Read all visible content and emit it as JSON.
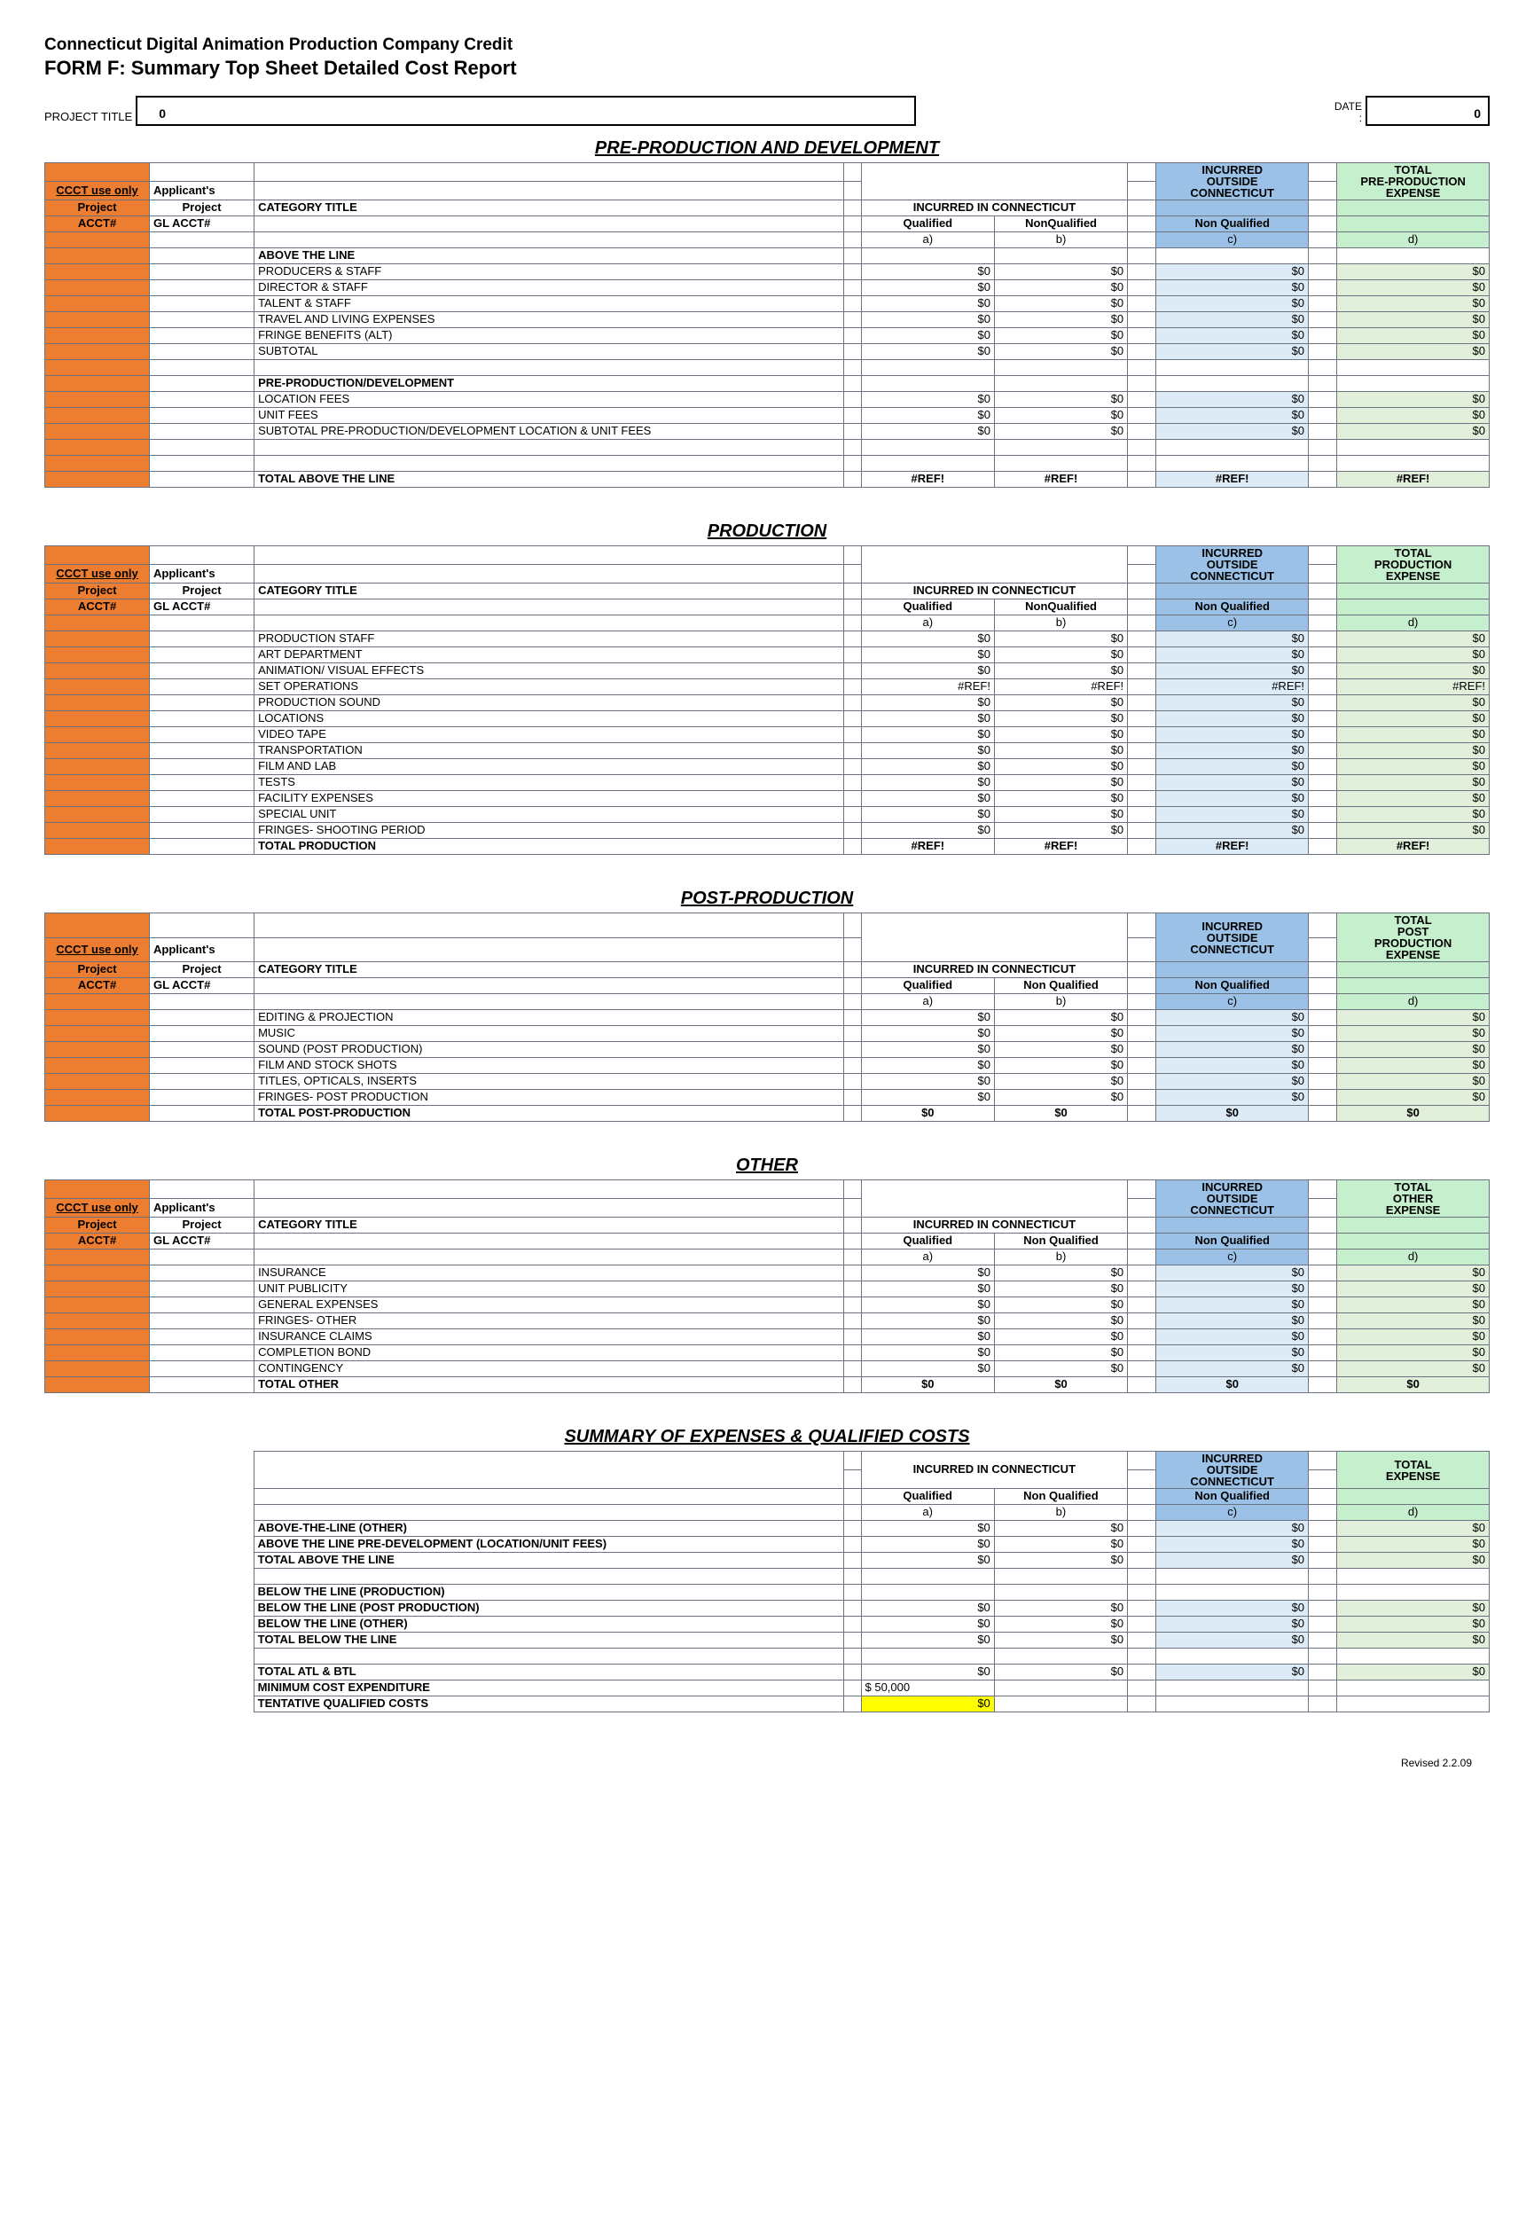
{
  "header": {
    "title1": "Connecticut Digital Animation Production Company Credit",
    "title2": "FORM F:  Summary Top Sheet Detailed Cost Report",
    "projectLabel": "PROJECT TITLE",
    "projectValue": "0",
    "dateLabel": "DATE:",
    "dateValue": "0"
  },
  "colors": {
    "orange": "#ed7d31",
    "blueHeader": "#9bc2e6",
    "greenHeader": "#c6efce",
    "blueCell": "#ddebf7",
    "greenCell": "#e2efda",
    "yellow": "#ffff00"
  },
  "labels": {
    "ccctUseOnly": "CCCT use only",
    "applicants": "Applicant's",
    "projectAcct": "Project",
    "acctNum": "ACCT#",
    "glAcct": "GL ACCT#",
    "categoryTitle": "CATEGORY TITLE",
    "incurredCT": "INCURRED IN CONNECTICUT",
    "qualified": "Qualified",
    "nonQualified": "NonQualified",
    "nonQualifiedSp": "Non Qualified",
    "incurredOutside": "INCURRED OUTSIDE CONNECTICUT",
    "a": "a)",
    "b": "b)",
    "c": "c)",
    "d": "d)"
  },
  "sections": [
    {
      "name": "PRE-PRODUCTION AND DEVELOPMENT",
      "totalHeader": "TOTAL PRE-PRODUCTION EXPENSE",
      "nonQualLabel": "NonQualified",
      "rows": [
        {
          "type": "bold",
          "label": "ABOVE THE LINE"
        },
        {
          "type": "data",
          "label": "PRODUCERS & STAFF",
          "a": "$0",
          "b": "$0",
          "c": "$0",
          "d": "$0"
        },
        {
          "type": "data",
          "label": "DIRECTOR & STAFF",
          "a": "$0",
          "b": "$0",
          "c": "$0",
          "d": "$0"
        },
        {
          "type": "data",
          "label": "TALENT & STAFF",
          "a": "$0",
          "b": "$0",
          "c": "$0",
          "d": "$0"
        },
        {
          "type": "data",
          "label": "TRAVEL AND LIVING EXPENSES",
          "a": "$0",
          "b": "$0",
          "c": "$0",
          "d": "$0"
        },
        {
          "type": "data",
          "label": "FRINGE BENEFITS (ALT)",
          "a": "$0",
          "b": "$0",
          "c": "$0",
          "d": "$0"
        },
        {
          "type": "data",
          "label": "SUBTOTAL",
          "a": "$0",
          "b": "$0",
          "c": "$0",
          "d": "$0"
        },
        {
          "type": "blank"
        },
        {
          "type": "bold",
          "label": "PRE-PRODUCTION/DEVELOPMENT"
        },
        {
          "type": "data",
          "label": "LOCATION FEES",
          "a": "$0",
          "b": "$0",
          "c": "$0",
          "d": "$0"
        },
        {
          "type": "data",
          "label": "UNIT FEES",
          "a": "$0",
          "b": "$0",
          "c": "$0",
          "d": "$0"
        },
        {
          "type": "data",
          "label": "SUBTOTAL PRE-PRODUCTION/DEVELOPMENT LOCATION & UNIT FEES",
          "a": "$0",
          "b": "$0",
          "c": "$0",
          "d": "$0"
        },
        {
          "type": "blank"
        },
        {
          "type": "blank"
        },
        {
          "type": "total",
          "label": "TOTAL ABOVE THE LINE",
          "a": "#REF!",
          "b": "#REF!",
          "c": "#REF!",
          "d": "#REF!"
        }
      ]
    },
    {
      "name": "PRODUCTION",
      "totalHeader": "TOTAL PRODUCTION EXPENSE",
      "nonQualLabel": "NonQualified",
      "rows": [
        {
          "type": "data",
          "label": "PRODUCTION STAFF",
          "a": "$0",
          "b": "$0",
          "c": "$0",
          "d": "$0"
        },
        {
          "type": "data",
          "label": "ART DEPARTMENT",
          "a": "$0",
          "b": "$0",
          "c": "$0",
          "d": "$0"
        },
        {
          "type": "data",
          "label": "ANIMATION/ VISUAL EFFECTS",
          "a": "$0",
          "b": "$0",
          "c": "$0",
          "d": "$0"
        },
        {
          "type": "data",
          "label": "SET OPERATIONS",
          "a": "#REF!",
          "b": "#REF!",
          "c": "#REF!",
          "d": "#REF!"
        },
        {
          "type": "data",
          "label": "PRODUCTION SOUND",
          "a": "$0",
          "b": "$0",
          "c": "$0",
          "d": "$0"
        },
        {
          "type": "data",
          "label": "LOCATIONS",
          "a": "$0",
          "b": "$0",
          "c": "$0",
          "d": "$0"
        },
        {
          "type": "data",
          "label": "VIDEO TAPE",
          "a": "$0",
          "b": "$0",
          "c": "$0",
          "d": "$0"
        },
        {
          "type": "data",
          "label": "TRANSPORTATION",
          "a": "$0",
          "b": "$0",
          "c": "$0",
          "d": "$0"
        },
        {
          "type": "data",
          "label": "FILM AND LAB",
          "a": "$0",
          "b": "$0",
          "c": "$0",
          "d": "$0"
        },
        {
          "type": "data",
          "label": "TESTS",
          "a": "$0",
          "b": "$0",
          "c": "$0",
          "d": "$0"
        },
        {
          "type": "data",
          "label": "FACILITY EXPENSES",
          "a": "$0",
          "b": "$0",
          "c": "$0",
          "d": "$0"
        },
        {
          "type": "data",
          "label": "SPECIAL UNIT",
          "a": "$0",
          "b": "$0",
          "c": "$0",
          "d": "$0"
        },
        {
          "type": "data",
          "label": "FRINGES- SHOOTING PERIOD",
          "a": "$0",
          "b": "$0",
          "c": "$0",
          "d": "$0"
        },
        {
          "type": "total",
          "label": "TOTAL PRODUCTION",
          "a": "#REF!",
          "b": "#REF!",
          "c": "#REF!",
          "d": "#REF!"
        }
      ]
    },
    {
      "name": "POST-PRODUCTION",
      "totalHeader": "TOTAL POST PRODUCTION EXPENSE",
      "nonQualLabel": "Non Qualified",
      "rows": [
        {
          "type": "data",
          "label": "EDITING & PROJECTION",
          "a": "$0",
          "b": "$0",
          "c": "$0",
          "d": "$0"
        },
        {
          "type": "data",
          "label": "MUSIC",
          "a": "$0",
          "b": "$0",
          "c": "$0",
          "d": "$0"
        },
        {
          "type": "data",
          "label": "SOUND (POST PRODUCTION)",
          "a": "$0",
          "b": "$0",
          "c": "$0",
          "d": "$0"
        },
        {
          "type": "data",
          "label": "FILM AND STOCK SHOTS",
          "a": "$0",
          "b": "$0",
          "c": "$0",
          "d": "$0"
        },
        {
          "type": "data",
          "label": "TITLES, OPTICALS, INSERTS",
          "a": "$0",
          "b": "$0",
          "c": "$0",
          "d": "$0"
        },
        {
          "type": "data",
          "label": "FRINGES- POST PRODUCTION",
          "a": "$0",
          "b": "$0",
          "c": "$0",
          "d": "$0"
        },
        {
          "type": "total",
          "label": "TOTAL POST-PRODUCTION",
          "a": "$0",
          "b": "$0",
          "c": "$0",
          "d": "$0"
        }
      ]
    },
    {
      "name": "OTHER",
      "totalHeader": "TOTAL OTHER EXPENSE",
      "nonQualLabel": "Non Qualified",
      "rows": [
        {
          "type": "data",
          "label": "INSURANCE",
          "a": "$0",
          "b": "$0",
          "c": "$0",
          "d": "$0"
        },
        {
          "type": "data",
          "label": "UNIT PUBLICITY",
          "a": "$0",
          "b": "$0",
          "c": "$0",
          "d": "$0"
        },
        {
          "type": "data",
          "label": "GENERAL EXPENSES",
          "a": "$0",
          "b": "$0",
          "c": "$0",
          "d": "$0"
        },
        {
          "type": "data",
          "label": "FRINGES- OTHER",
          "a": "$0",
          "b": "$0",
          "c": "$0",
          "d": "$0"
        },
        {
          "type": "data",
          "label": "INSURANCE CLAIMS",
          "a": "$0",
          "b": "$0",
          "c": "$0",
          "d": "$0"
        },
        {
          "type": "data",
          "label": "COMPLETION BOND",
          "a": "$0",
          "b": "$0",
          "c": "$0",
          "d": "$0"
        },
        {
          "type": "data",
          "label": "CONTINGENCY",
          "a": "$0",
          "b": "$0",
          "c": "$0",
          "d": "$0"
        },
        {
          "type": "total",
          "label": "TOTAL OTHER",
          "a": "$0",
          "b": "$0",
          "c": "$0",
          "d": "$0"
        }
      ]
    }
  ],
  "summary": {
    "title": "SUMMARY OF EXPENSES & QUALIFIED COSTS",
    "totalHeader": "TOTAL EXPENSE",
    "rows": [
      {
        "type": "data",
        "bold": true,
        "label": "ABOVE-THE-LINE (OTHER)",
        "a": "$0",
        "b": "$0",
        "c": "$0",
        "d": "$0"
      },
      {
        "type": "data",
        "bold": true,
        "label": "ABOVE THE LINE PRE-DEVELOPMENT (LOCATION/UNIT FEES)",
        "a": "$0",
        "b": "$0",
        "c": "$0",
        "d": "$0"
      },
      {
        "type": "data",
        "bold": true,
        "label": "TOTAL ABOVE THE LINE",
        "a": "$0",
        "b": "$0",
        "c": "$0",
        "d": "$0"
      },
      {
        "type": "blank"
      },
      {
        "type": "bold",
        "label": "BELOW THE LINE (PRODUCTION)"
      },
      {
        "type": "data",
        "bold": true,
        "label": "BELOW THE LINE (POST PRODUCTION)",
        "a": "$0",
        "b": "$0",
        "c": "$0",
        "d": "$0"
      },
      {
        "type": "data",
        "bold": true,
        "label": "BELOW THE LINE (OTHER)",
        "a": "$0",
        "b": "$0",
        "c": "$0",
        "d": "$0"
      },
      {
        "type": "data",
        "bold": true,
        "label": "TOTAL BELOW THE LINE",
        "a": "$0",
        "b": "$0",
        "c": "$0",
        "d": "$0"
      },
      {
        "type": "blank"
      },
      {
        "type": "data",
        "bold": true,
        "label": "TOTAL ATL & BTL",
        "a": "$0",
        "b": "$0",
        "c": "$0",
        "d": "$0"
      },
      {
        "type": "min",
        "bold": true,
        "label": "MINIMUM COST EXPENDITURE",
        "a": "$        50,000"
      },
      {
        "type": "tent",
        "bold": true,
        "label": "TENTATIVE QUALIFIED COSTS",
        "a": "$0"
      }
    ]
  },
  "footer": "Revised 2.2.09"
}
